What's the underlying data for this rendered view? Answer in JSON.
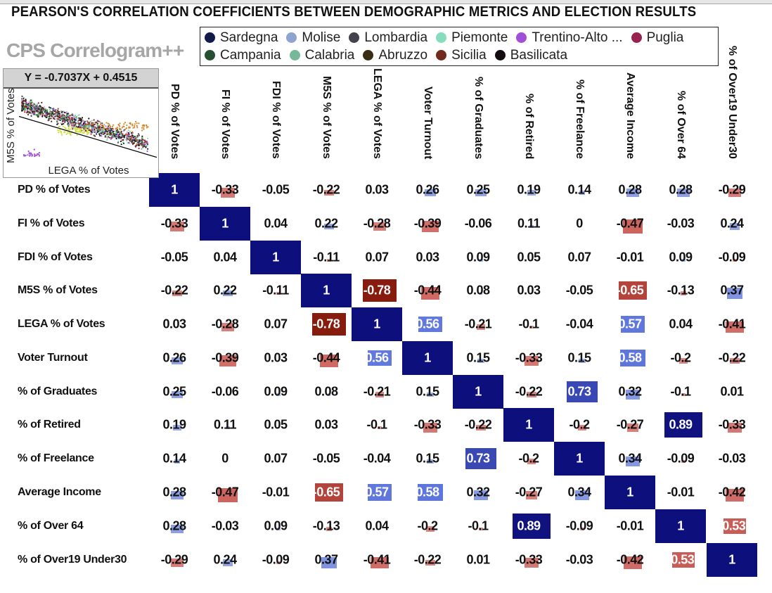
{
  "page_title": "PEARSON'S CORRELATION COEFFICIENTS BETWEEN DEMOGRAPHIC METRICS AND ELECTION RESULTS",
  "visual_title": "CPS Correlogram++",
  "chart_data": {
    "type": "heatmap",
    "title": "CPS Correlogram++",
    "variables": [
      "PD % of Votes",
      "FI % of Votes",
      "FDI % of Votes",
      "M5S % of Votes",
      "LEGA % of Votes",
      "Voter Turnout",
      "% of Graduates",
      "% of Retired",
      "% of Freelance",
      "Average Income",
      "% of Over 64",
      "% of Over19 Under30"
    ],
    "matrix": [
      [
        1,
        -0.33,
        -0.05,
        -0.22,
        0.03,
        0.26,
        0.25,
        0.19,
        0.14,
        0.28,
        0.28,
        -0.29
      ],
      [
        -0.33,
        1,
        0.04,
        0.22,
        -0.28,
        -0.39,
        -0.06,
        0.11,
        0,
        -0.47,
        -0.03,
        0.24
      ],
      [
        -0.05,
        0.04,
        1,
        -0.11,
        0.07,
        0.03,
        0.09,
        0.05,
        0.07,
        -0.01,
        0.09,
        -0.09
      ],
      [
        -0.22,
        0.22,
        -0.11,
        1,
        -0.78,
        -0.44,
        0.08,
        0.03,
        -0.05,
        -0.65,
        -0.13,
        0.37
      ],
      [
        0.03,
        -0.28,
        0.07,
        -0.78,
        1,
        0.56,
        -0.21,
        -0.1,
        -0.04,
        0.57,
        0.04,
        -0.41
      ],
      [
        0.26,
        -0.39,
        0.03,
        -0.44,
        0.56,
        1,
        0.15,
        -0.33,
        0.15,
        0.58,
        -0.2,
        -0.22
      ],
      [
        0.25,
        -0.06,
        0.09,
        0.08,
        -0.21,
        0.15,
        1,
        -0.22,
        0.73,
        0.32,
        -0.1,
        0.01
      ],
      [
        0.19,
        0.11,
        0.05,
        0.03,
        -0.1,
        -0.33,
        -0.22,
        1,
        -0.2,
        -0.27,
        0.89,
        -0.33
      ],
      [
        0.14,
        0,
        0.07,
        -0.05,
        -0.04,
        0.15,
        0.73,
        -0.2,
        1,
        0.34,
        -0.09,
        -0.03
      ],
      [
        0.28,
        -0.47,
        -0.01,
        -0.65,
        0.57,
        0.58,
        0.32,
        -0.27,
        0.34,
        1,
        -0.01,
        -0.42
      ],
      [
        0.28,
        -0.03,
        0.09,
        -0.13,
        0.04,
        -0.2,
        -0.1,
        0.89,
        -0.09,
        -0.01,
        1,
        -0.53
      ],
      [
        -0.29,
        0.24,
        -0.09,
        0.37,
        -0.41,
        -0.22,
        0.01,
        -0.33,
        -0.03,
        -0.42,
        -0.53,
        1
      ]
    ],
    "colors": {
      "positive_strong": "#0d0f7c",
      "positive_mid": "#5b73db",
      "positive_weak": "#b9c6e8",
      "negative_strong": "#801507",
      "negative_mid": "#c4534d",
      "negative_weak": "#e9a5a2"
    }
  },
  "tooltip": {
    "equation": "Y = -0.7037X + 0.4515",
    "slope": -0.7037,
    "intercept": 0.4515,
    "xlabel": "LEGA % of Votes",
    "ylabel": "M5S % of Votes",
    "legend": [
      {
        "label": "Sardegna",
        "color": "#111b4a"
      },
      {
        "label": "Molise",
        "color": "#8fa3d0"
      },
      {
        "label": "Lombardia",
        "color": "#44434d"
      },
      {
        "label": "Piemonte",
        "color": "#86dcbd"
      },
      {
        "label": "Trentino-Alto ...",
        "color": "#a04fd6"
      },
      {
        "label": "Puglia",
        "color": "#962250"
      },
      {
        "label": "Campania",
        "color": "#255032"
      },
      {
        "label": "Calabria",
        "color": "#75b99a"
      },
      {
        "label": "Abruzzo",
        "color": "#382c14"
      },
      {
        "label": "Sicilia",
        "color": "#6e2b1e"
      },
      {
        "label": "Basilicata",
        "color": "#140c10"
      }
    ]
  }
}
